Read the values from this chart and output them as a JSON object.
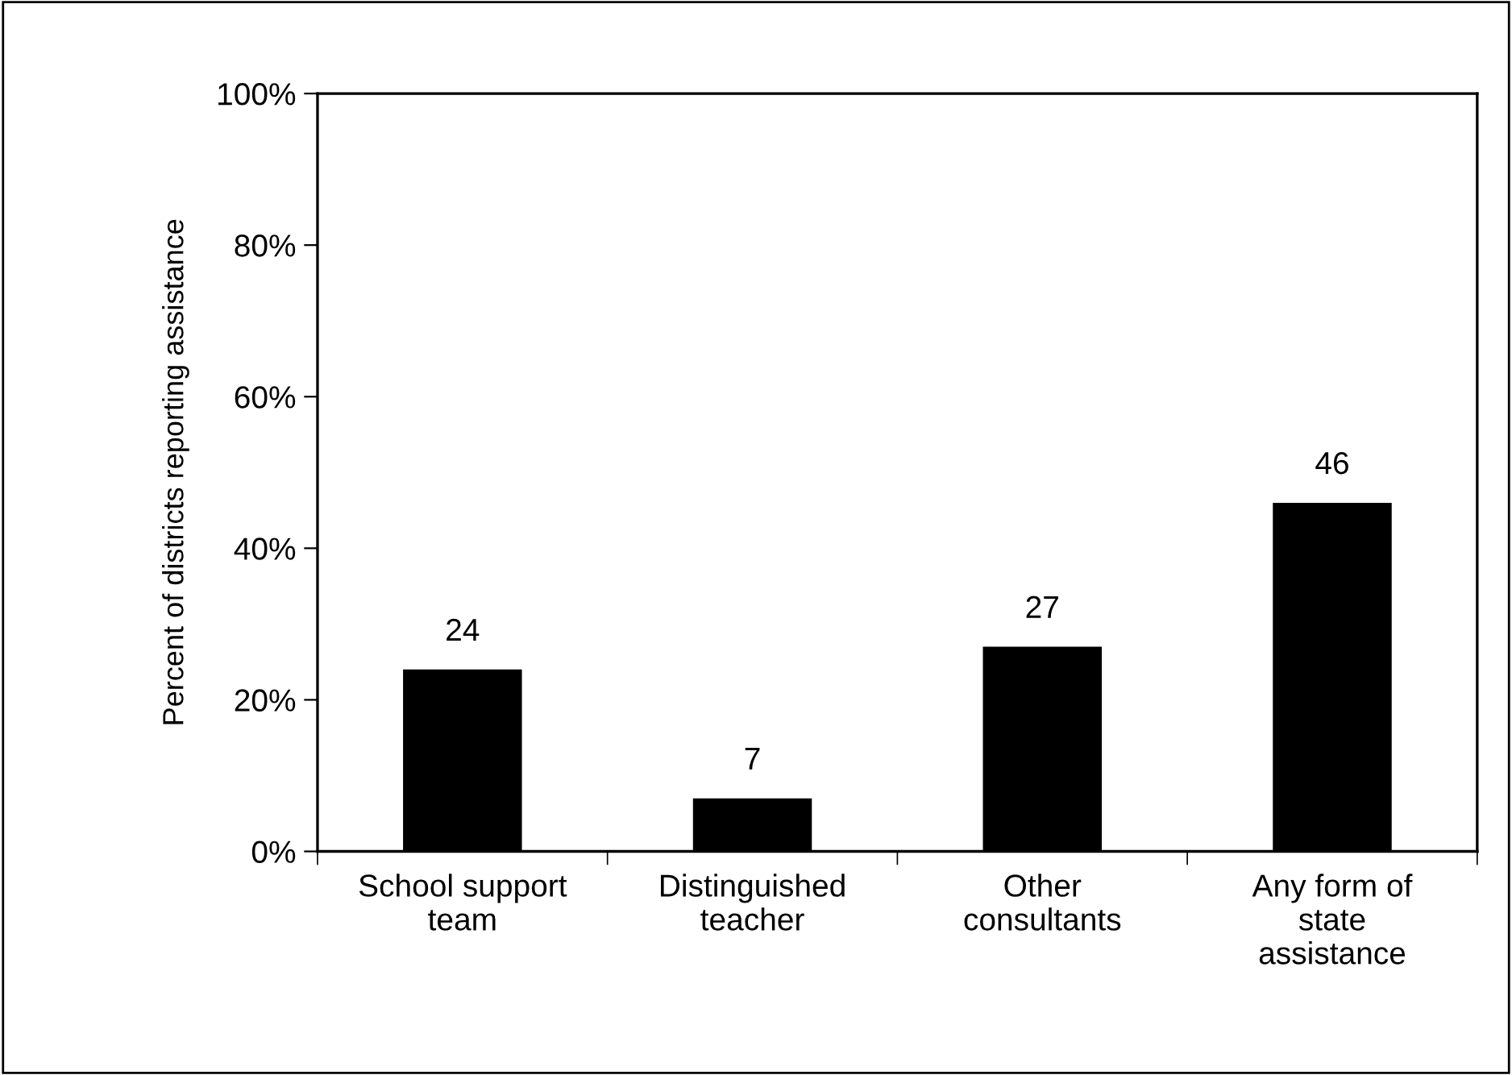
{
  "chart_data": {
    "type": "bar",
    "ylabel": "Percent of districts reporting assistance",
    "categories": [
      "School support\nteam",
      "Distinguished\nteacher",
      "Other\nconsultants",
      "Any form of\nstate\nassistance"
    ],
    "values": [
      24,
      7,
      27,
      46
    ],
    "color": "#000000",
    "ylim": [
      0,
      100
    ],
    "yticks": [
      {
        "value": 0,
        "label": "0%"
      },
      {
        "value": 20,
        "label": "20%"
      },
      {
        "value": 40,
        "label": "40%"
      },
      {
        "value": 60,
        "label": "60%"
      },
      {
        "value": 80,
        "label": "80%"
      },
      {
        "value": 100,
        "label": "100%"
      }
    ],
    "data_labels": true,
    "grid": false,
    "legend": false
  }
}
